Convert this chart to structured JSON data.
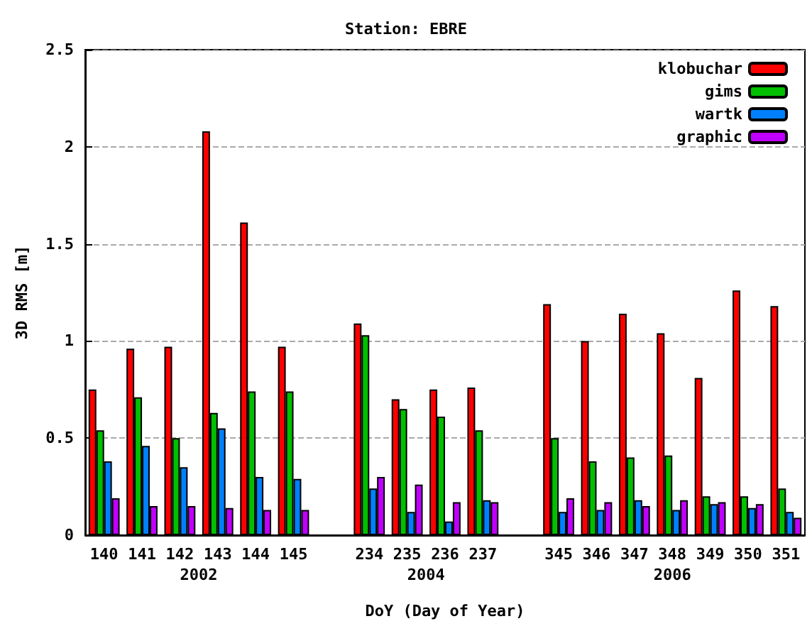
{
  "chart_data": {
    "type": "bar",
    "title": "Station: EBRE",
    "xlabel": "DoY (Day of Year)",
    "ylabel": "3D RMS [m]",
    "categories": [
      "140",
      "141",
      "142",
      "143",
      "144",
      "145",
      null,
      "234",
      "235",
      "236",
      "237",
      null,
      "345",
      "346",
      "347",
      "348",
      "349",
      "350",
      "351"
    ],
    "series": [
      {
        "name": "klobuchar",
        "color": "#ff0000",
        "values": [
          0.75,
          0.96,
          0.97,
          2.08,
          1.61,
          0.97,
          null,
          1.09,
          0.7,
          0.75,
          0.76,
          null,
          1.19,
          1.0,
          1.14,
          1.04,
          0.81,
          1.26,
          1.18
        ]
      },
      {
        "name": "gims",
        "color": "#00c000",
        "values": [
          0.54,
          0.71,
          0.5,
          0.63,
          0.74,
          0.74,
          null,
          1.03,
          0.65,
          0.61,
          0.54,
          null,
          0.5,
          0.38,
          0.4,
          0.41,
          0.2,
          0.2,
          0.24
        ]
      },
      {
        "name": "wartk",
        "color": "#0080ff",
        "values": [
          0.38,
          0.46,
          0.35,
          0.55,
          0.3,
          0.29,
          null,
          0.24,
          0.12,
          0.07,
          0.18,
          null,
          0.12,
          0.13,
          0.18,
          0.13,
          0.16,
          0.14,
          0.12
        ]
      },
      {
        "name": "graphic",
        "color": "#c000ff",
        "values": [
          0.19,
          0.15,
          0.15,
          0.14,
          0.13,
          0.13,
          null,
          0.3,
          0.26,
          0.17,
          0.17,
          null,
          0.19,
          0.17,
          0.15,
          0.18,
          0.17,
          0.16,
          0.09
        ]
      }
    ],
    "ylim": [
      0,
      2.5
    ],
    "yticks": [
      0,
      0.5,
      1,
      1.5,
      2,
      2.5
    ],
    "grid": "y",
    "legend": "top right",
    "annotations": [
      "2002",
      "2004",
      "2006"
    ]
  }
}
